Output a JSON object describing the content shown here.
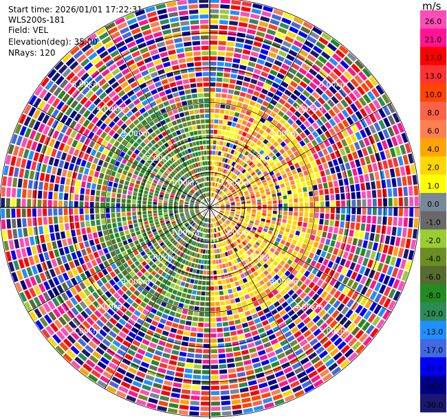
{
  "header": {
    "start_time": "Start time: 2026/01/01 17:22:31",
    "instrument": "WLS200s-181",
    "field": "Field: VEL",
    "elevation": "Elevation(deg): 35.00",
    "nrays": "NRays: 120"
  },
  "chart_data": {
    "type": "heatmap",
    "projection": "polar-ppi",
    "n_rays": 120,
    "n_gates": 40,
    "max_range_km": 6.0,
    "range_ring_labels": [
      "1.00km",
      "2.00km",
      "3.00km",
      "4.00km",
      "5.00km"
    ],
    "range_ring_values_km": [
      1,
      2,
      3,
      4,
      5
    ],
    "colorbar": {
      "unit": "m/s",
      "ticks": [
        "26.0",
        "21.0",
        "17.0",
        "13.0",
        "10.0",
        "8.0",
        "6.0",
        "4.0",
        "2.0",
        "1.0",
        "0.0",
        "-1.0",
        "-2.0",
        "-4.0",
        "-6.0",
        "-8.0",
        "-10.0",
        "-13.0",
        "-17.0",
        "-21.0",
        "-26.0",
        "-30.0"
      ],
      "bins": [
        {
          "from": 26,
          "to": 30,
          "color": "#ff4db8"
        },
        {
          "from": 21,
          "to": 26,
          "color": "#ff1493"
        },
        {
          "from": 17,
          "to": 21,
          "color": "#ff0000"
        },
        {
          "from": 13,
          "to": 17,
          "color": "#ff3333"
        },
        {
          "from": 10,
          "to": 13,
          "color": "#ff4500"
        },
        {
          "from": 8,
          "to": 10,
          "color": "#ff6347"
        },
        {
          "from": 6,
          "to": 8,
          "color": "#ff7f50"
        },
        {
          "from": 4,
          "to": 6,
          "color": "#ffa500"
        },
        {
          "from": 2,
          "to": 4,
          "color": "#ffd700"
        },
        {
          "from": 1,
          "to": 2,
          "color": "#ffff00"
        },
        {
          "from": 0,
          "to": 1,
          "color": "#778899"
        },
        {
          "from": -1,
          "to": 0,
          "color": "#696969"
        },
        {
          "from": -2,
          "to": -1,
          "color": "#9acd32"
        },
        {
          "from": -4,
          "to": -2,
          "color": "#6b8e23"
        },
        {
          "from": -6,
          "to": -4,
          "color": "#556b2f"
        },
        {
          "from": -8,
          "to": -6,
          "color": "#228b22"
        },
        {
          "from": -10,
          "to": -8,
          "color": "#2e8b57"
        },
        {
          "from": -13,
          "to": -10,
          "color": "#1e90ff"
        },
        {
          "from": -17,
          "to": -13,
          "color": "#4169e1"
        },
        {
          "from": -21,
          "to": -17,
          "color": "#0000ff"
        },
        {
          "from": -26,
          "to": -21,
          "color": "#00008b"
        },
        {
          "from": -30,
          "to": -26,
          "color": "#191970"
        }
      ]
    }
  }
}
